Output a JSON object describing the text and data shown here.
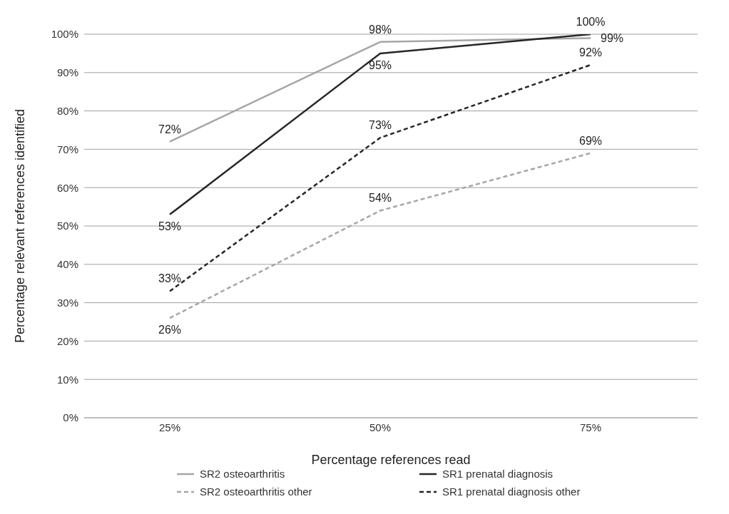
{
  "chart_data": {
    "type": "line",
    "xlabel": "Percentage references read",
    "ylabel": "Percentage relevant references  identified",
    "categories": [
      "25%",
      "50%",
      "75%"
    ],
    "series": [
      {
        "name": "SR2 osteoarthritis",
        "color": "#a6a6a6",
        "values": [
          72,
          98,
          99
        ],
        "value_labels": [
          "72%",
          "98%",
          "99%"
        ],
        "line_style": "solid"
      },
      {
        "name": "SR1 prenatal diagnosis",
        "color": "#262626",
        "values": [
          53,
          95,
          100
        ],
        "value_labels": [
          "53%",
          "95%",
          "100%"
        ],
        "line_style": "solid"
      },
      {
        "name": "SR2 osteoarthritis other",
        "color": "#a6a6a6",
        "values": [
          26,
          54,
          69
        ],
        "value_labels": [
          "26%",
          "54%",
          "69%"
        ],
        "line_style": "dashed"
      },
      {
        "name": "SR1 prenatal diagnosis other",
        "color": "#262626",
        "values": [
          33,
          73,
          92
        ],
        "value_labels": [
          "33%",
          "73%",
          "92%"
        ],
        "line_style": "dashed"
      }
    ],
    "ylim": [
      0,
      100
    ],
    "yticks": [
      {
        "value": 0,
        "label": "0%"
      },
      {
        "value": 10,
        "label": "10%"
      },
      {
        "value": 20,
        "label": "20%"
      },
      {
        "value": 30,
        "label": "30%"
      },
      {
        "value": 40,
        "label": "40%"
      },
      {
        "value": 50,
        "label": "50%"
      },
      {
        "value": 60,
        "label": "60%"
      },
      {
        "value": 70,
        "label": "70%"
      },
      {
        "value": 80,
        "label": "80%"
      },
      {
        "value": 90,
        "label": "90%"
      },
      {
        "value": 100,
        "label": "100%"
      }
    ],
    "grid": "y",
    "legend": "bottom",
    "marker": "none"
  }
}
